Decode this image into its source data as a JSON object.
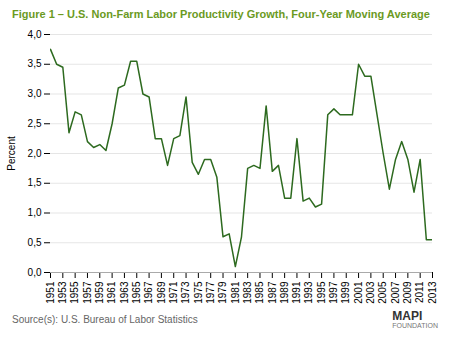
{
  "chart_data": {
    "type": "line",
    "title": "Figure 1 – U.S. Non-Farm Labor Productivity Growth, Four-Year Moving Average",
    "ylabel": "Percent",
    "annotations": [
      "Source(s): U.S. Bureau of Labor Statistics",
      "MAPI",
      "FOUNDATION"
    ],
    "color": "#2d6a1f",
    "grid": true,
    "x": [
      1951,
      1952,
      1953,
      1954,
      1955,
      1956,
      1957,
      1958,
      1959,
      1960,
      1961,
      1962,
      1963,
      1964,
      1965,
      1966,
      1967,
      1968,
      1969,
      1970,
      1971,
      1972,
      1973,
      1974,
      1975,
      1976,
      1977,
      1978,
      1979,
      1980,
      1981,
      1982,
      1983,
      1984,
      1985,
      1986,
      1987,
      1988,
      1989,
      1990,
      1991,
      1992,
      1993,
      1994,
      1995,
      1996,
      1997,
      1998,
      1999,
      2000,
      2001,
      2002,
      2003,
      2004,
      2005,
      2006,
      2007,
      2008,
      2009,
      2010,
      2011,
      2012,
      2013
    ],
    "values": [
      3.75,
      3.5,
      3.45,
      2.35,
      2.7,
      2.65,
      2.2,
      2.1,
      2.15,
      2.05,
      2.5,
      3.1,
      3.15,
      3.55,
      3.55,
      3.0,
      2.95,
      2.25,
      2.25,
      1.8,
      2.25,
      2.3,
      2.95,
      1.85,
      1.65,
      1.9,
      1.9,
      1.6,
      0.6,
      0.65,
      0.1,
      0.6,
      1.75,
      1.8,
      1.75,
      2.8,
      1.7,
      1.8,
      1.25,
      1.25,
      2.25,
      1.2,
      1.25,
      1.1,
      1.15,
      2.65,
      2.75,
      2.65,
      2.65,
      2.65,
      3.5,
      3.3,
      3.3,
      2.65,
      2.0,
      1.4,
      1.9,
      2.2,
      1.9,
      1.35,
      1.9,
      0.55,
      0.55
    ],
    "xlim": [
      1951,
      2013
    ],
    "xticks": [
      1951,
      1953,
      1955,
      1957,
      1959,
      1961,
      1963,
      1965,
      1967,
      1969,
      1971,
      1973,
      1975,
      1977,
      1979,
      1981,
      1983,
      1985,
      1987,
      1989,
      1991,
      1993,
      1995,
      1997,
      1999,
      2001,
      2003,
      2005,
      2007,
      2009,
      2011,
      2013
    ],
    "ylim": [
      0,
      4.0
    ],
    "yticks": [
      {
        "value": 0.0,
        "label": "0,0"
      },
      {
        "value": 0.5,
        "label": "0,5"
      },
      {
        "value": 1.0,
        "label": "1,0"
      },
      {
        "value": 1.5,
        "label": "1,5"
      },
      {
        "value": 2.0,
        "label": "2,0"
      },
      {
        "value": 2.5,
        "label": "2,5"
      },
      {
        "value": 3.0,
        "label": "3,0"
      },
      {
        "value": 3.5,
        "label": "3,5"
      },
      {
        "value": 4.0,
        "label": "4,0"
      }
    ]
  }
}
